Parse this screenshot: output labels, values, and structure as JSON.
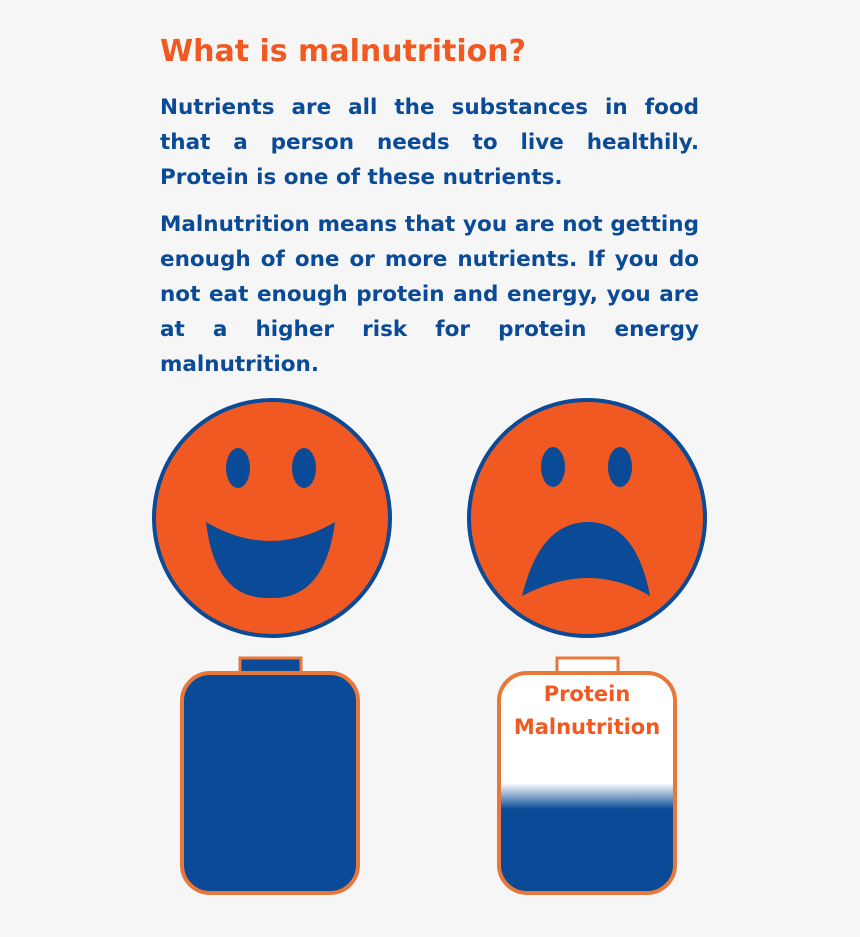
{
  "header": {
    "title": "What is malnutrition?"
  },
  "paragraphs": [
    "Nutrients are all the substances in food that a person needs to live healthily. Protein is one of these nutrients.",
    "Malnutrition means that you are not getting enough of one or more nutrients. If you do not eat enough protein and energy, you are at a higher risk for protein energy malnutrition."
  ],
  "battery_label": [
    "Protein",
    "Malnutrition"
  ]
}
